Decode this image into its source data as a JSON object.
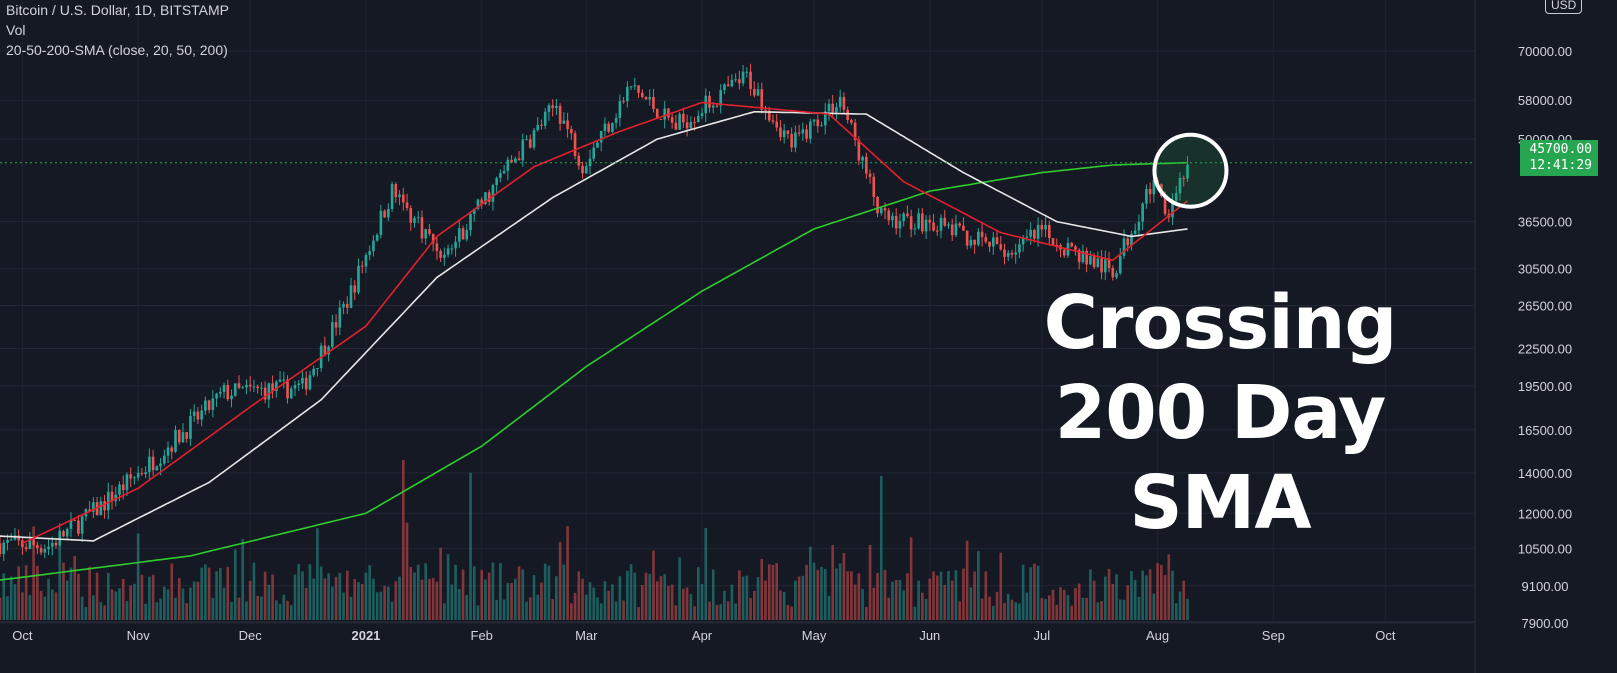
{
  "legend": {
    "symbol": "Bitcoin / U.S. Dollar, 1D, BITSTAMP",
    "volume": "Vol",
    "sma": "20-50-200-SMA (close, 20, 50, 200)"
  },
  "headline": {
    "line1": "Crossing",
    "line2": "200 Day SMA"
  },
  "price_label": {
    "value": "45700.00",
    "countdown": "12:41:29"
  },
  "currency": "USD",
  "colors": {
    "background": "#151924",
    "up": "#26a69a",
    "down": "#ef5350",
    "sma20": "#e3202b",
    "sma50": "#e6e6e6",
    "sma200": "#2ecc2e",
    "price_tag": "#26a650"
  },
  "chart_data": {
    "type": "candlestick",
    "y_scale": "log",
    "ylim": [
      7400,
      85000
    ],
    "y_ticks": [
      "70000.00",
      "58000.00",
      "50000.00",
      "36500.00",
      "30500.00",
      "26500.00",
      "22500.00",
      "19500.00",
      "16500.00",
      "14000.00",
      "12000.00",
      "10500.00",
      "9100.00",
      "7900.00"
    ],
    "x_ticks": [
      "Oct",
      "Nov",
      "Dec",
      "2021",
      "Feb",
      "Mar",
      "Apr",
      "May",
      "Jun",
      "Jul",
      "Aug",
      "Sep",
      "Oct"
    ],
    "x_range": [
      "2020-09-25",
      "2021-10-25"
    ],
    "key_points": [
      {
        "date": "2020-09-25",
        "close": 10700
      },
      {
        "date": "2020-10-08",
        "close": 10600
      },
      {
        "date": "2020-10-21",
        "close": 12200
      },
      {
        "date": "2020-11-05",
        "close": 14700
      },
      {
        "date": "2020-11-24",
        "close": 19000
      },
      {
        "date": "2020-12-15",
        "close": 19400
      },
      {
        "date": "2020-12-27",
        "close": 27000
      },
      {
        "date": "2021-01-08",
        "close": 41000
      },
      {
        "date": "2021-01-22",
        "close": 32000
      },
      {
        "date": "2021-02-08",
        "close": 45000
      },
      {
        "date": "2021-02-21",
        "close": 57000
      },
      {
        "date": "2021-02-28",
        "close": 45500
      },
      {
        "date": "2021-03-13",
        "close": 61000
      },
      {
        "date": "2021-03-25",
        "close": 52500
      },
      {
        "date": "2021-04-13",
        "close": 63500
      },
      {
        "date": "2021-04-25",
        "close": 49000
      },
      {
        "date": "2021-05-08",
        "close": 58500
      },
      {
        "date": "2021-05-19",
        "close": 37000
      },
      {
        "date": "2021-06-01",
        "close": 36500
      },
      {
        "date": "2021-06-22",
        "close": 32500
      },
      {
        "date": "2021-07-01",
        "close": 35000
      },
      {
        "date": "2021-07-20",
        "close": 30000
      },
      {
        "date": "2021-07-30",
        "close": 42000
      },
      {
        "date": "2021-08-04",
        "close": 38500
      },
      {
        "date": "2021-08-09",
        "close": 45700
      }
    ],
    "sma20_points": [
      {
        "date": "2020-10-01",
        "value": 10700
      },
      {
        "date": "2020-11-01",
        "value": 13200
      },
      {
        "date": "2020-12-01",
        "value": 18000
      },
      {
        "date": "2021-01-01",
        "value": 24500
      },
      {
        "date": "2021-01-20",
        "value": 34500
      },
      {
        "date": "2021-02-15",
        "value": 45000
      },
      {
        "date": "2021-03-10",
        "value": 51500
      },
      {
        "date": "2021-04-01",
        "value": 57500
      },
      {
        "date": "2021-05-05",
        "value": 55000
      },
      {
        "date": "2021-05-25",
        "value": 42500
      },
      {
        "date": "2021-06-20",
        "value": 35000
      },
      {
        "date": "2021-07-20",
        "value": 31500
      },
      {
        "date": "2021-08-09",
        "value": 39500
      }
    ],
    "sma50_points": [
      {
        "date": "2020-09-25",
        "value": 11000
      },
      {
        "date": "2020-10-20",
        "value": 10800
      },
      {
        "date": "2020-11-20",
        "value": 13500
      },
      {
        "date": "2020-12-20",
        "value": 18500
      },
      {
        "date": "2021-01-20",
        "value": 29500
      },
      {
        "date": "2021-02-20",
        "value": 40000
      },
      {
        "date": "2021-03-20",
        "value": 50000
      },
      {
        "date": "2021-04-15",
        "value": 55500
      },
      {
        "date": "2021-05-15",
        "value": 55000
      },
      {
        "date": "2021-06-10",
        "value": 44000
      },
      {
        "date": "2021-07-05",
        "value": 36500
      },
      {
        "date": "2021-07-25",
        "value": 34500
      },
      {
        "date": "2021-08-09",
        "value": 35500
      }
    ],
    "sma200_points": [
      {
        "date": "2020-09-25",
        "value": 9300
      },
      {
        "date": "2020-11-15",
        "value": 10200
      },
      {
        "date": "2021-01-01",
        "value": 12000
      },
      {
        "date": "2021-02-01",
        "value": 15500
      },
      {
        "date": "2021-03-01",
        "value": 21000
      },
      {
        "date": "2021-04-01",
        "value": 28000
      },
      {
        "date": "2021-05-01",
        "value": 35500
      },
      {
        "date": "2021-06-01",
        "value": 41000
      },
      {
        "date": "2021-07-01",
        "value": 44000
      },
      {
        "date": "2021-07-20",
        "value": 45300
      },
      {
        "date": "2021-08-09",
        "value": 45700
      }
    ],
    "volume_spikes": [
      {
        "date": "2021-01-11",
        "relative": 1.0
      },
      {
        "date": "2021-01-29",
        "relative": 0.92
      },
      {
        "date": "2021-05-19",
        "relative": 0.9
      }
    ],
    "current_price": 45700,
    "annotation": "circle around crossing of 200-day SMA at 2021-08-09"
  }
}
